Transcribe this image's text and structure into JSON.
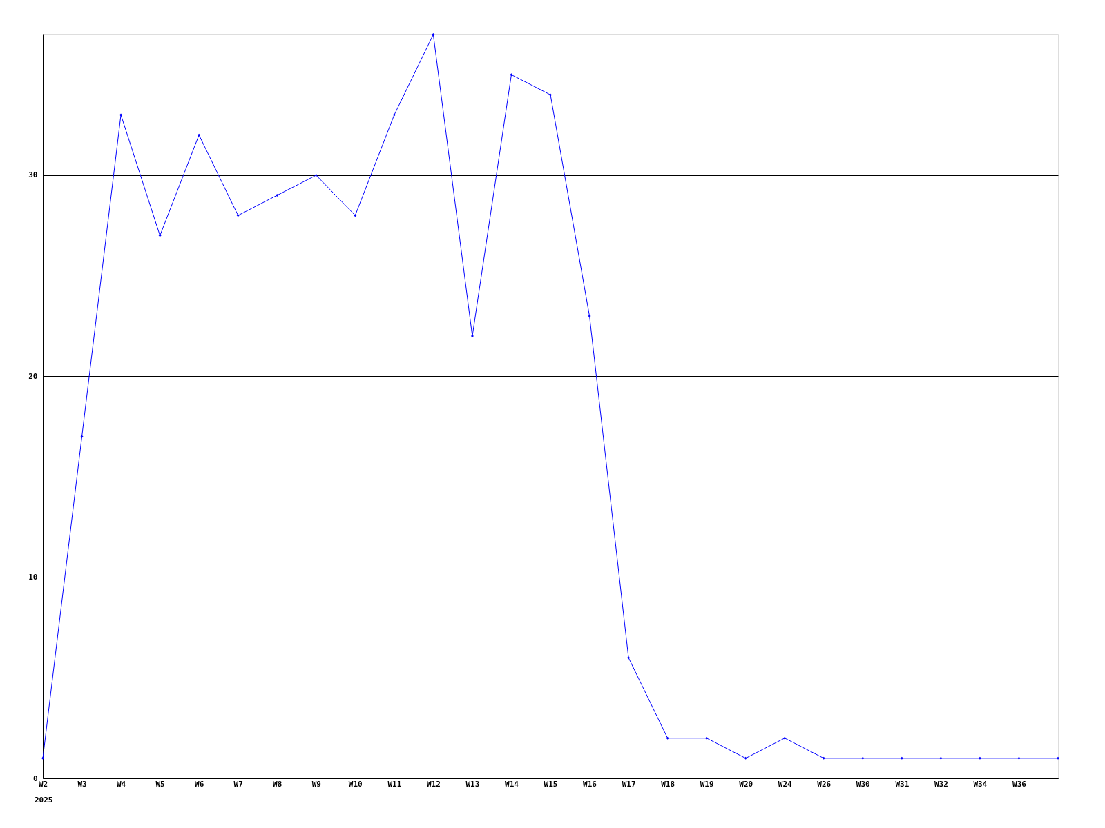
{
  "chart_data": {
    "type": "line",
    "categories": [
      "W2",
      "W3",
      "W4",
      "W5",
      "W6",
      "W7",
      "W8",
      "W9",
      "W10",
      "W11",
      "W12",
      "W13",
      "W14",
      "W15",
      "W16",
      "W17",
      "W18",
      "W19",
      "W20",
      "W24",
      "W26",
      "W30",
      "W31",
      "W32",
      "W34",
      "W36",
      null
    ],
    "series": [
      {
        "color": "#0000ff",
        "values": [
          1,
          17,
          33,
          27,
          32,
          28,
          29,
          30,
          28,
          33,
          37,
          22,
          35,
          34,
          23,
          6,
          2,
          2,
          1,
          2,
          1,
          1,
          1,
          1,
          1,
          1,
          1
        ]
      }
    ],
    "ylim": [
      0,
      37
    ],
    "yticks": [
      0,
      10,
      20,
      30
    ],
    "grid": "y",
    "marker": "diamond",
    "line_style": "solid",
    "annotations": [
      "2025"
    ]
  }
}
